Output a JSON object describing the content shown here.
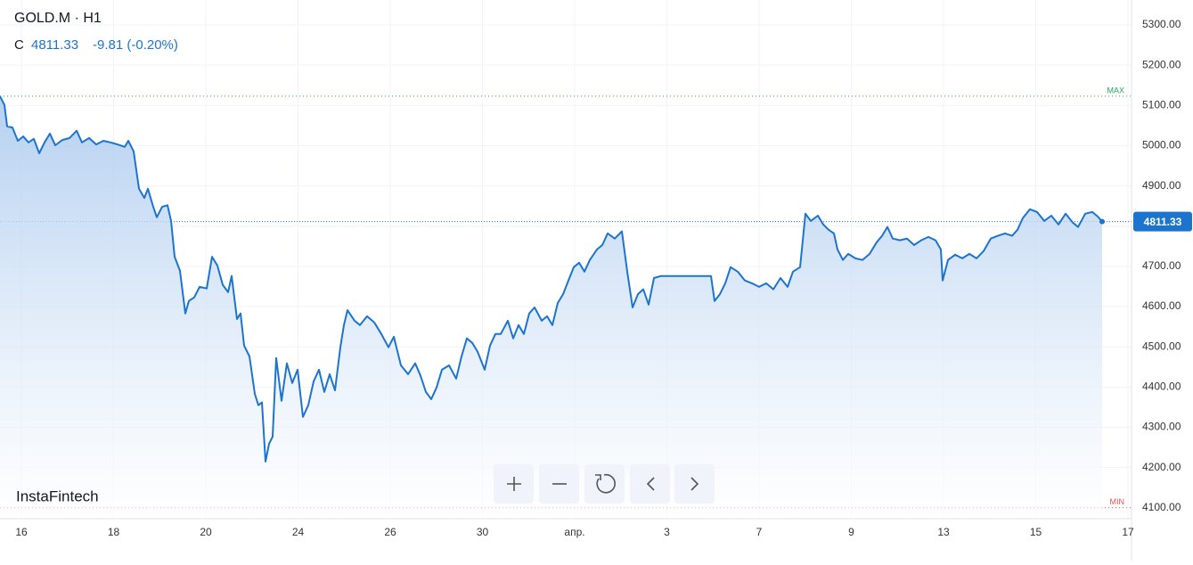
{
  "chart_data": {
    "type": "line",
    "title": "GOLD.M · H1",
    "close_label": "C",
    "last": 4811.33,
    "change": "-9.81 (-0.20%)",
    "watermark": "InstaFintech",
    "max": {
      "label": "MAX",
      "value": 5123
    },
    "min": {
      "label": "MIN",
      "value": 4100
    },
    "ylim": [
      4073,
      5362
    ],
    "yticks": [
      {
        "value": 4100,
        "label": "4100.00"
      },
      {
        "value": 4200,
        "label": "4200.00"
      },
      {
        "value": 4300,
        "label": "4300.00"
      },
      {
        "value": 4400,
        "label": "4400.00"
      },
      {
        "value": 4500,
        "label": "4500.00"
      },
      {
        "value": 4600,
        "label": "4600.00"
      },
      {
        "value": 4700,
        "label": "4700.00"
      },
      {
        "value": 4800,
        "label": "4800.00"
      },
      {
        "value": 4900,
        "label": "4900.00"
      },
      {
        "value": 5000,
        "label": "5000.00"
      },
      {
        "value": 5100,
        "label": "5100.00"
      },
      {
        "value": 5200,
        "label": "5200.00"
      },
      {
        "value": 5300,
        "label": "5300.00"
      }
    ],
    "xlim": [
      0,
      1270
    ],
    "xticks": [
      {
        "value": 24,
        "label": "16"
      },
      {
        "value": 127.5,
        "label": "18"
      },
      {
        "value": 231,
        "label": "20"
      },
      {
        "value": 334.5,
        "label": "24"
      },
      {
        "value": 438,
        "label": "26"
      },
      {
        "value": 541.5,
        "label": "30"
      },
      {
        "value": 645,
        "label": "апр."
      },
      {
        "value": 748.5,
        "label": "3"
      },
      {
        "value": 852,
        "label": "7"
      },
      {
        "value": 955.5,
        "label": "9"
      },
      {
        "value": 1059,
        "label": "13"
      },
      {
        "value": 1162.5,
        "label": "15"
      },
      {
        "value": 1266,
        "label": "17"
      }
    ],
    "grid": true,
    "series": [
      {
        "color": "#1c74cf",
        "x": [
          0,
          5,
          8,
          14,
          20,
          26,
          32,
          38,
          44,
          50,
          56,
          62,
          70,
          78,
          86,
          92,
          100,
          108,
          116,
          124,
          132,
          140,
          144,
          150,
          156,
          162,
          166,
          172,
          176,
          182,
          188,
          192,
          196,
          202,
          208,
          212,
          218,
          224,
          232,
          238,
          244,
          250,
          256,
          260,
          266,
          270,
          274,
          280,
          286,
          290,
          294,
          298,
          302,
          306,
          310,
          316,
          322,
          328,
          334,
          340,
          346,
          352,
          358,
          364,
          370,
          376,
          382,
          386,
          390,
          398,
          404,
          412,
          420,
          428,
          436,
          442,
          450,
          458,
          466,
          472,
          478,
          484,
          490,
          496,
          504,
          512,
          518,
          524,
          530,
          536,
          544,
          550,
          556,
          562,
          570,
          576,
          582,
          588,
          594,
          600,
          608,
          614,
          620,
          626,
          632,
          638,
          644,
          650,
          656,
          662,
          670,
          676,
          682,
          690,
          698,
          704,
          710,
          716,
          722,
          728,
          734,
          742,
          760,
          780,
          798,
          802,
          808,
          814,
          820,
          828,
          836,
          844,
          852,
          860,
          868,
          876,
          884,
          890,
          898,
          904,
          910,
          918,
          924,
          930,
          936,
          940,
          946,
          952,
          960,
          968,
          976,
          984,
          990,
          996,
          1002,
          1010,
          1018,
          1026,
          1034,
          1042,
          1050,
          1056,
          1058,
          1064,
          1072,
          1080,
          1088,
          1096,
          1104,
          1112,
          1120,
          1128,
          1136,
          1142,
          1148,
          1156,
          1164,
          1172,
          1180,
          1188,
          1196,
          1204,
          1210,
          1218,
          1226,
          1232,
          1237
        ],
        "values": [
          5123,
          5101,
          5048,
          5045,
          5012,
          5023,
          5008,
          5017,
          4981,
          5008,
          5030,
          5001,
          5014,
          5019,
          5037,
          5008,
          5019,
          5003,
          5012,
          5008,
          5003,
          4997,
          5012,
          4986,
          4893,
          4870,
          4893,
          4848,
          4822,
          4848,
          4852,
          4813,
          4724,
          4689,
          4583,
          4614,
          4623,
          4649,
          4645,
          4724,
          4702,
          4654,
          4636,
          4676,
          4569,
          4583,
          4503,
          4476,
          4383,
          4355,
          4362,
          4215,
          4259,
          4277,
          4472,
          4366,
          4459,
          4410,
          4443,
          4326,
          4355,
          4414,
          4443,
          4388,
          4432,
          4392,
          4499,
          4554,
          4591,
          4565,
          4554,
          4576,
          4561,
          4532,
          4499,
          4525,
          4454,
          4432,
          4459,
          4428,
          4388,
          4370,
          4399,
          4443,
          4454,
          4421,
          4476,
          4521,
          4510,
          4488,
          4443,
          4503,
          4532,
          4532,
          4565,
          4521,
          4554,
          4532,
          4583,
          4598,
          4565,
          4576,
          4554,
          4609,
          4631,
          4665,
          4698,
          4709,
          4687,
          4716,
          4742,
          4753,
          4782,
          4769,
          4787,
          4687,
          4598,
          4631,
          4643,
          4605,
          4671,
          4676,
          4676,
          4676,
          4676,
          4614,
          4631,
          4658,
          4698,
          4687,
          4665,
          4658,
          4649,
          4658,
          4643,
          4671,
          4649,
          4687,
          4698,
          4831,
          4813,
          4826,
          4804,
          4791,
          4782,
          4742,
          4716,
          4731,
          4720,
          4716,
          4731,
          4760,
          4776,
          4798,
          4769,
          4765,
          4769,
          4753,
          4765,
          4773,
          4765,
          4742,
          4665,
          4716,
          4729,
          4720,
          4731,
          4720,
          4738,
          4769,
          4776,
          4782,
          4776,
          4791,
          4820,
          4842,
          4835,
          4813,
          4826,
          4804,
          4831,
          4809,
          4798,
          4831,
          4835,
          4824,
          4811.33
        ]
      }
    ]
  }
}
